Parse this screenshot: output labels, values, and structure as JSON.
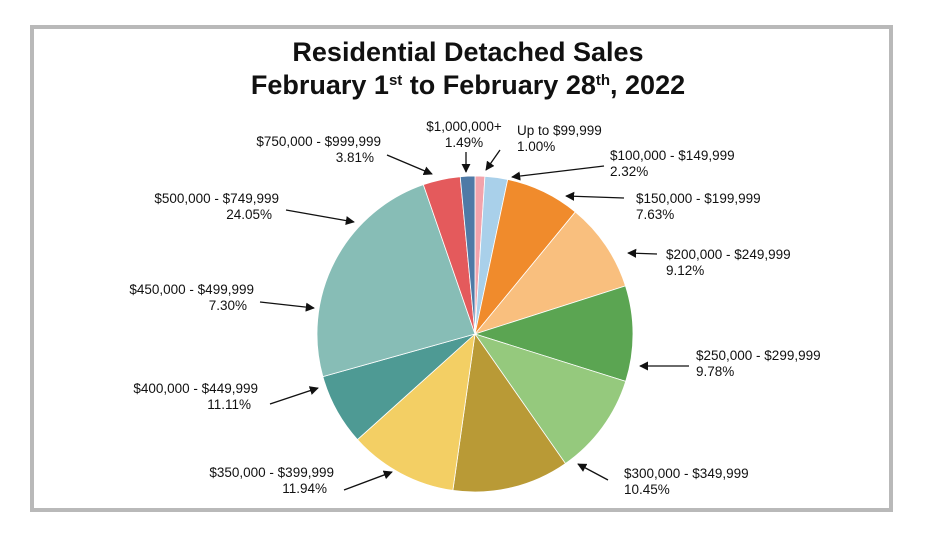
{
  "chart_data": {
    "type": "pie",
    "title_line1": "Residential Detached Sales",
    "title_line2": {
      "part1": "February 1",
      "sup1": "st",
      "part2": " to February 28",
      "sup2": "th",
      "part3": ", 2022"
    },
    "slices": [
      {
        "label": "Up to $99,999",
        "value_text": "1.00%",
        "value": 1.0,
        "color": "#f3a3ab"
      },
      {
        "label": "$100,000 - $149,999",
        "value_text": "2.32%",
        "value": 2.32,
        "color": "#a9d0ea"
      },
      {
        "label": "$150,000 - $199,999",
        "value_text": "7.63%",
        "value": 7.63,
        "color": "#f08b2c"
      },
      {
        "label": "$200,000 - $249,999",
        "value_text": "9.12%",
        "value": 9.12,
        "color": "#f9bf7e"
      },
      {
        "label": "$250,000 - $299,999",
        "value_text": "9.78%",
        "value": 9.78,
        "color": "#5ba552"
      },
      {
        "label": "$300,000 - $349,999",
        "value_text": "10.45%",
        "value": 10.45,
        "color": "#95c97d"
      },
      {
        "label": "$350,000 - $399,999",
        "value_text": "11.94%",
        "value": 11.94,
        "color": "#b99a36"
      },
      {
        "label": "$400,000 - $449,999",
        "value_text": "11.11%",
        "value": 11.11,
        "color": "#f3cf64"
      },
      {
        "label": "$450,000 - $499,999",
        "value_text": "7.30%",
        "value": 7.3,
        "color": "#4e9a94"
      },
      {
        "label": "$500,000 - $749,999",
        "value_text": "24.05%",
        "value": 24.05,
        "color": "#87bdb6"
      },
      {
        "label": "$750,000 - $999,999",
        "value_text": "3.81%",
        "value": 3.81,
        "color": "#e45a5c"
      },
      {
        "label": "$1,000,000+",
        "value_text": "1.49%",
        "value": 1.49,
        "color": "#4f7aa6"
      }
    ]
  }
}
